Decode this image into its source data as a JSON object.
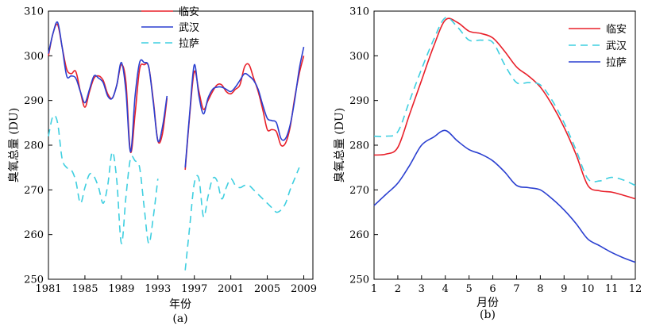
{
  "chart_data": [
    {
      "type": "line",
      "panel_label": "(a)",
      "xlabel": "年份",
      "ylabel": "臭氧总量 (DU)",
      "xlim": [
        1981,
        2010
      ],
      "ylim": [
        250,
        310
      ],
      "xticks": [
        1981,
        1985,
        1989,
        1993,
        1997,
        2001,
        2005,
        2009
      ],
      "yticks": [
        250,
        260,
        270,
        280,
        290,
        300,
        310
      ],
      "legend_position": "top-center",
      "series": [
        {
          "name": "临安",
          "color": "#e8202a",
          "dash": "solid",
          "segments": [
            [
              [
                1981,
                300.0
              ],
              [
                1981.5,
                305.0
              ],
              [
                1982,
                307.0
              ],
              [
                1982.5,
                302.0
              ],
              [
                1983,
                297.0
              ],
              [
                1983.5,
                296.0
              ],
              [
                1984,
                296.5
              ],
              [
                1984.5,
                292.0
              ],
              [
                1985,
                288.5
              ],
              [
                1985.5,
                292.0
              ],
              [
                1986,
                295.0
              ],
              [
                1986.5,
                295.5
              ],
              [
                1987,
                294.5
              ],
              [
                1987.5,
                291.5
              ],
              [
                1988,
                290.5
              ],
              [
                1988.5,
                293.5
              ],
              [
                1989,
                298.0
              ],
              [
                1989.5,
                294.0
              ],
              [
                1990,
                278.5
              ],
              [
                1990.5,
                287.0
              ],
              [
                1991,
                297.0
              ],
              [
                1991.5,
                298.0
              ],
              [
                1992,
                297.5
              ],
              [
                1992.5,
                290.0
              ],
              [
                1993,
                281.0
              ],
              [
                1993.5,
                282.5
              ],
              [
                1994,
                290.5
              ]
            ],
            [
              [
                1996,
                274.5
              ],
              [
                1996.5,
                287.0
              ],
              [
                1997,
                296.5
              ],
              [
                1997.5,
                292.0
              ],
              [
                1998,
                288.0
              ],
              [
                1998.5,
                290.0
              ],
              [
                1999,
                292.0
              ],
              [
                1999.5,
                293.5
              ],
              [
                2000,
                293.5
              ],
              [
                2000.5,
                292.0
              ],
              [
                2001,
                291.5
              ],
              [
                2001.5,
                292.5
              ],
              [
                2002,
                293.5
              ],
              [
                2002.5,
                297.5
              ],
              [
                2003,
                298.0
              ],
              [
                2003.5,
                295.0
              ],
              [
                2004,
                292.0
              ],
              [
                2004.5,
                288.0
              ],
              [
                2005,
                283.5
              ],
              [
                2005.5,
                283.5
              ],
              [
                2006,
                283.0
              ],
              [
                2006.5,
                280.0
              ],
              [
                2007,
                280.5
              ],
              [
                2007.5,
                284.0
              ],
              [
                2008,
                290.5
              ],
              [
                2008.5,
                296.0
              ],
              [
                2009,
                300.0
              ]
            ]
          ]
        },
        {
          "name": "武汉",
          "color": "#2a3fd0",
          "dash": "solid",
          "segments": [
            [
              [
                1981,
                300.5
              ],
              [
                1981.5,
                305.0
              ],
              [
                1982,
                307.5
              ],
              [
                1982.5,
                302.0
              ],
              [
                1983,
                295.5
              ],
              [
                1983.5,
                295.5
              ],
              [
                1984,
                295.0
              ],
              [
                1984.5,
                292.0
              ],
              [
                1985,
                289.5
              ],
              [
                1985.5,
                292.5
              ],
              [
                1986,
                295.5
              ],
              [
                1986.5,
                295.0
              ],
              [
                1987,
                294.0
              ],
              [
                1987.5,
                291.0
              ],
              [
                1988,
                290.5
              ],
              [
                1988.5,
                293.5
              ],
              [
                1989,
                298.5
              ],
              [
                1989.5,
                292.0
              ],
              [
                1990,
                278.5
              ],
              [
                1990.5,
                291.0
              ],
              [
                1991,
                298.5
              ],
              [
                1991.5,
                298.5
              ],
              [
                1992,
                297.5
              ],
              [
                1992.5,
                289.5
              ],
              [
                1993,
                281.0
              ],
              [
                1993.5,
                284.0
              ],
              [
                1994,
                291.0
              ]
            ],
            [
              [
                1996,
                275.0
              ],
              [
                1996.5,
                287.5
              ],
              [
                1997,
                298.0
              ],
              [
                1997.5,
                291.0
              ],
              [
                1998,
                287.0
              ],
              [
                1998.5,
                290.5
              ],
              [
                1999,
                292.5
              ],
              [
                1999.5,
                293.0
              ],
              [
                2000,
                293.0
              ],
              [
                2000.5,
                292.5
              ],
              [
                2001,
                292.0
              ],
              [
                2001.5,
                293.0
              ],
              [
                2002,
                294.5
              ],
              [
                2002.5,
                296.0
              ],
              [
                2003,
                295.5
              ],
              [
                2003.5,
                294.5
              ],
              [
                2004,
                292.5
              ],
              [
                2004.5,
                289.0
              ],
              [
                2005,
                286.0
              ],
              [
                2005.5,
                285.5
              ],
              [
                2006,
                285.0
              ],
              [
                2006.5,
                281.5
              ],
              [
                2007,
                281.5
              ],
              [
                2007.5,
                284.5
              ],
              [
                2008,
                290.0
              ],
              [
                2008.5,
                297.0
              ],
              [
                2009,
                302.0
              ]
            ]
          ]
        },
        {
          "name": "拉萨",
          "color": "#3fcfe0",
          "dash": "dashed",
          "segments": [
            [
              [
                1981,
                282.0
              ],
              [
                1981.5,
                286.5
              ],
              [
                1982,
                285.0
              ],
              [
                1982.5,
                277.0
              ],
              [
                1983,
                275.0
              ],
              [
                1983.5,
                274.5
              ],
              [
                1984,
                272.0
              ],
              [
                1984.5,
                267.0
              ],
              [
                1985,
                270.5
              ],
              [
                1985.5,
                273.5
              ],
              [
                1986,
                273.0
              ],
              [
                1986.5,
                270.5
              ],
              [
                1987,
                267.0
              ],
              [
                1987.5,
                271.0
              ],
              [
                1988,
                278.5
              ],
              [
                1988.5,
                272.0
              ],
              [
                1989,
                258.0
              ],
              [
                1989.5,
                268.5
              ],
              [
                1990,
                277.0
              ],
              [
                1990.5,
                276.5
              ],
              [
                1991,
                275.0
              ],
              [
                1991.5,
                266.0
              ],
              [
                1992,
                258.0
              ],
              [
                1992.5,
                264.0
              ],
              [
                1993,
                272.5
              ]
            ],
            [
              [
                1996,
                252.0
              ],
              [
                1996.5,
                262.0
              ],
              [
                1997,
                271.5
              ],
              [
                1997.5,
                272.5
              ],
              [
                1998,
                264.0
              ],
              [
                1998.5,
                268.5
              ],
              [
                1999,
                272.5
              ],
              [
                1999.5,
                272.0
              ],
              [
                2000,
                268.0
              ],
              [
                2000.5,
                270.5
              ],
              [
                2001,
                272.5
              ],
              [
                2001.5,
                271.0
              ],
              [
                2002,
                270.5
              ],
              [
                2002.5,
                271.0
              ],
              [
                2003,
                271.0
              ],
              [
                2003.5,
                270.0
              ],
              [
                2004,
                269.0
              ],
              [
                2004.5,
                268.0
              ],
              [
                2005,
                267.0
              ],
              [
                2005.5,
                266.0
              ],
              [
                2006,
                265.0
              ],
              [
                2006.5,
                265.5
              ],
              [
                2007,
                267.0
              ],
              [
                2007.5,
                270.0
              ],
              [
                2008,
                272.5
              ],
              [
                2008.5,
                275.0
              ]
            ]
          ]
        }
      ]
    },
    {
      "type": "line",
      "panel_label": "(b)",
      "xlabel": "月份",
      "ylabel": "臭氧总量 (DU)",
      "xlim": [
        1,
        12
      ],
      "ylim": [
        250,
        310
      ],
      "xticks": [
        1,
        2,
        3,
        4,
        5,
        6,
        7,
        8,
        9,
        10,
        11,
        12
      ],
      "yticks": [
        250,
        260,
        270,
        280,
        290,
        300,
        310
      ],
      "legend_position": "top-right",
      "series": [
        {
          "name": "临安",
          "color": "#e8202a",
          "dash": "solid",
          "segments": [
            [
              [
                1,
                277.8
              ],
              [
                1.5,
                278.0
              ],
              [
                2,
                279.5
              ],
              [
                2.5,
                287.0
              ],
              [
                3,
                294.5
              ],
              [
                3.5,
                302.0
              ],
              [
                4,
                308.0
              ],
              [
                4.5,
                307.5
              ],
              [
                5,
                305.5
              ],
              [
                5.5,
                305.0
              ],
              [
                6,
                304.0
              ],
              [
                6.5,
                301.0
              ],
              [
                7,
                297.5
              ],
              [
                7.5,
                295.5
              ],
              [
                8,
                293.0
              ],
              [
                8.5,
                289.0
              ],
              [
                9,
                284.0
              ],
              [
                9.5,
                278.0
              ],
              [
                10,
                271.0
              ],
              [
                10.5,
                269.8
              ],
              [
                11,
                269.5
              ],
              [
                11.5,
                268.8
              ],
              [
                12,
                268.0
              ]
            ]
          ]
        },
        {
          "name": "武汉",
          "color": "#3fcfe0",
          "dash": "dashed",
          "segments": [
            [
              [
                1,
                282.0
              ],
              [
                1.5,
                282.0
              ],
              [
                2,
                283.0
              ],
              [
                2.5,
                290.0
              ],
              [
                3,
                297.0
              ],
              [
                3.5,
                303.5
              ],
              [
                4,
                308.5
              ],
              [
                4.5,
                306.5
              ],
              [
                5,
                303.5
              ],
              [
                5.5,
                303.5
              ],
              [
                6,
                303.0
              ],
              [
                6.5,
                298.0
              ],
              [
                7,
                294.0
              ],
              [
                7.5,
                294.0
              ],
              [
                8,
                293.5
              ],
              [
                8.5,
                290.0
              ],
              [
                9,
                285.0
              ],
              [
                9.5,
                279.0
              ],
              [
                10,
                272.5
              ],
              [
                10.5,
                272.0
              ],
              [
                11,
                272.8
              ],
              [
                11.5,
                272.2
              ],
              [
                12,
                271.0
              ]
            ]
          ]
        },
        {
          "name": "拉萨",
          "color": "#2a3fd0",
          "dash": "solid",
          "segments": [
            [
              [
                1,
                266.5
              ],
              [
                1.5,
                269.0
              ],
              [
                2,
                271.5
              ],
              [
                2.5,
                275.5
              ],
              [
                3,
                280.0
              ],
              [
                3.5,
                281.8
              ],
              [
                4,
                283.3
              ],
              [
                4.5,
                281.0
              ],
              [
                5,
                279.0
              ],
              [
                5.5,
                278.0
              ],
              [
                6,
                276.5
              ],
              [
                6.5,
                274.0
              ],
              [
                7,
                271.0
              ],
              [
                7.5,
                270.5
              ],
              [
                8,
                270.0
              ],
              [
                8.5,
                268.0
              ],
              [
                9,
                265.5
              ],
              [
                9.5,
                262.5
              ],
              [
                10,
                259.0
              ],
              [
                10.5,
                257.5
              ],
              [
                11,
                256.0
              ],
              [
                11.5,
                254.8
              ],
              [
                12,
                253.8
              ]
            ]
          ]
        }
      ]
    }
  ]
}
